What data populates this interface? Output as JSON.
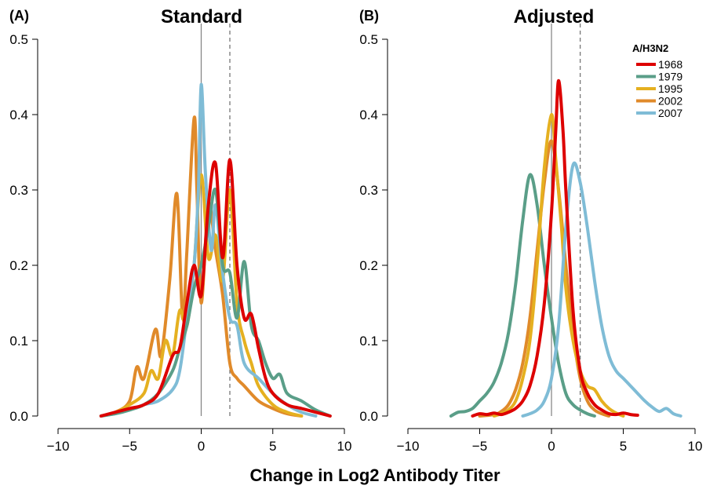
{
  "xlabel": "Change in Log2 Antibody Titer",
  "legend": {
    "title": "A/H3N2",
    "entries": [
      {
        "label": "1968",
        "color": "#dd0000"
      },
      {
        "label": "1979",
        "color": "#5a9e88"
      },
      {
        "label": "1995",
        "color": "#e5b020"
      },
      {
        "label": "2002",
        "color": "#e08a2a"
      },
      {
        "label": "2007",
        "color": "#7fbcd6"
      }
    ]
  },
  "chart_data": [
    {
      "type": "line",
      "panel_label": "(A)",
      "title": "Standard",
      "xlabel": "Change in Log2 Antibody Titer",
      "ylabel": "",
      "xlim": [
        -10,
        10
      ],
      "ylim": [
        0,
        0.5
      ],
      "xticks": [
        -10,
        -5,
        0,
        5,
        10
      ],
      "xtick_labels": [
        "−10",
        "−5",
        "0",
        "5",
        "10"
      ],
      "yticks": [
        0.0,
        0.1,
        0.2,
        0.3,
        0.4,
        0.5
      ],
      "ytick_labels": [
        "0.0",
        "0.1",
        "0.2",
        "0.3",
        "0.4",
        "0.5"
      ],
      "vlines": [
        {
          "x": 0,
          "style": "solid"
        },
        {
          "x": 2,
          "style": "dashed"
        }
      ],
      "series": [
        {
          "name": "2002",
          "color": "#e08a2a",
          "x": [
            -7,
            -6,
            -5,
            -4.5,
            -4,
            -3.2,
            -2.8,
            -2.2,
            -1.7,
            -1.3,
            -1,
            -0.5,
            -0.3,
            0,
            0.5,
            1,
            1.5,
            2,
            2.5,
            3,
            4,
            5,
            6,
            7
          ],
          "y": [
            0,
            0.005,
            0.02,
            0.065,
            0.05,
            0.115,
            0.08,
            0.18,
            0.295,
            0.13,
            0.22,
            0.395,
            0.3,
            0.15,
            0.28,
            0.22,
            0.16,
            0.07,
            0.05,
            0.04,
            0.02,
            0.01,
            0.003,
            0
          ]
        },
        {
          "name": "1995",
          "color": "#e5b020",
          "x": [
            -7,
            -6,
            -5,
            -4,
            -3.5,
            -3,
            -2.5,
            -2,
            -1.5,
            -1,
            -0.5,
            0,
            0.5,
            1,
            1.5,
            2,
            2.5,
            3,
            3.5,
            4,
            5,
            6,
            7
          ],
          "y": [
            0,
            0.005,
            0.015,
            0.03,
            0.06,
            0.05,
            0.1,
            0.08,
            0.14,
            0.12,
            0.2,
            0.32,
            0.21,
            0.24,
            0.18,
            0.3,
            0.15,
            0.1,
            0.07,
            0.04,
            0.015,
            0.005,
            0
          ]
        },
        {
          "name": "2007",
          "color": "#7fbcd6",
          "x": [
            -7,
            -6,
            -5,
            -4,
            -3,
            -2,
            -1.5,
            -1,
            -0.5,
            -0.2,
            0,
            0.3,
            0.7,
            1,
            1.5,
            2,
            2.5,
            3,
            4,
            5,
            6,
            7,
            8
          ],
          "y": [
            0,
            0.003,
            0.008,
            0.015,
            0.02,
            0.035,
            0.06,
            0.13,
            0.2,
            0.3,
            0.44,
            0.32,
            0.22,
            0.28,
            0.19,
            0.13,
            0.12,
            0.07,
            0.05,
            0.03,
            0.015,
            0.005,
            0
          ]
        },
        {
          "name": "1979",
          "color": "#5a9e88",
          "x": [
            -7,
            -6,
            -5,
            -4,
            -3,
            -2,
            -1.5,
            -1,
            -0.5,
            0,
            0.5,
            1,
            1.5,
            2,
            2.5,
            3,
            3.5,
            4,
            4.5,
            5,
            5.5,
            6,
            7,
            8,
            9
          ],
          "y": [
            0,
            0.003,
            0.008,
            0.015,
            0.03,
            0.06,
            0.09,
            0.12,
            0.17,
            0.2,
            0.25,
            0.3,
            0.2,
            0.19,
            0.13,
            0.205,
            0.12,
            0.1,
            0.07,
            0.05,
            0.055,
            0.03,
            0.02,
            0.008,
            0
          ]
        },
        {
          "name": "1968",
          "color": "#dd0000",
          "x": [
            -7,
            -6,
            -5,
            -4,
            -3,
            -2,
            -1.5,
            -1,
            -0.5,
            0,
            0.5,
            1,
            1.5,
            2,
            2.5,
            3,
            3.5,
            4,
            4.5,
            5,
            6,
            7,
            8,
            9
          ],
          "y": [
            0,
            0.005,
            0.01,
            0.015,
            0.03,
            0.08,
            0.09,
            0.15,
            0.2,
            0.16,
            0.28,
            0.335,
            0.21,
            0.34,
            0.2,
            0.13,
            0.135,
            0.09,
            0.05,
            0.03,
            0.015,
            0.01,
            0.005,
            0
          ]
        }
      ]
    },
    {
      "type": "line",
      "panel_label": "(B)",
      "title": "Adjusted",
      "xlabel": "Change in Log2 Antibody Titer",
      "ylabel": "",
      "xlim": [
        -10,
        10
      ],
      "ylim": [
        0,
        0.5
      ],
      "xticks": [
        -10,
        -5,
        0,
        5,
        10
      ],
      "xtick_labels": [
        "−10",
        "−5",
        "0",
        "5",
        "10"
      ],
      "yticks": [
        0.0,
        0.1,
        0.2,
        0.3,
        0.4,
        0.5
      ],
      "ytick_labels": [
        "0.0",
        "0.1",
        "0.2",
        "0.3",
        "0.4",
        "0.5"
      ],
      "vlines": [
        {
          "x": 0,
          "style": "solid"
        },
        {
          "x": 2,
          "style": "dashed"
        }
      ],
      "legend_position": "top-right",
      "series": [
        {
          "name": "1979",
          "color": "#5a9e88",
          "x": [
            -7,
            -6.5,
            -6,
            -5.5,
            -5,
            -4.5,
            -4,
            -3.5,
            -3,
            -2.5,
            -2,
            -1.5,
            -1,
            -0.5,
            0,
            0.5,
            1,
            1.5,
            2,
            2.5,
            3
          ],
          "y": [
            0,
            0.005,
            0.006,
            0.01,
            0.02,
            0.03,
            0.045,
            0.07,
            0.11,
            0.175,
            0.26,
            0.32,
            0.28,
            0.2,
            0.13,
            0.07,
            0.03,
            0.015,
            0.008,
            0.003,
            0
          ]
        },
        {
          "name": "2002",
          "color": "#e08a2a",
          "x": [
            -5,
            -4,
            -3.5,
            -3,
            -2.5,
            -2,
            -1.5,
            -1,
            -0.5,
            0,
            0.5,
            1,
            1.5,
            2,
            2.5,
            3,
            3.5,
            4
          ],
          "y": [
            0,
            0.002,
            0.006,
            0.015,
            0.035,
            0.07,
            0.13,
            0.22,
            0.31,
            0.365,
            0.3,
            0.2,
            0.11,
            0.05,
            0.02,
            0.008,
            0.003,
            0
          ]
        },
        {
          "name": "1995",
          "color": "#e5b020",
          "x": [
            -4,
            -3.5,
            -3,
            -2.5,
            -2,
            -1.5,
            -1,
            -0.5,
            0,
            0.3,
            0.7,
            1,
            1.5,
            2,
            2.5,
            3,
            3.5,
            4,
            4.5,
            5
          ],
          "y": [
            0,
            0.003,
            0.008,
            0.02,
            0.05,
            0.1,
            0.2,
            0.33,
            0.4,
            0.34,
            0.25,
            0.17,
            0.1,
            0.06,
            0.04,
            0.035,
            0.02,
            0.01,
            0.004,
            0
          ]
        },
        {
          "name": "2007",
          "color": "#7fbcd6",
          "x": [
            -2,
            -1.5,
            -1,
            -0.5,
            0,
            0.5,
            1,
            1.5,
            2,
            2.5,
            3,
            3.5,
            4,
            4.5,
            5,
            5.5,
            6,
            6.5,
            7,
            7.5,
            8,
            8.5,
            9
          ],
          "y": [
            0,
            0.003,
            0.008,
            0.02,
            0.05,
            0.12,
            0.25,
            0.333,
            0.31,
            0.25,
            0.18,
            0.12,
            0.08,
            0.06,
            0.05,
            0.04,
            0.03,
            0.02,
            0.012,
            0.006,
            0.01,
            0.003,
            0
          ]
        },
        {
          "name": "1968",
          "color": "#dd0000",
          "x": [
            -5.5,
            -5,
            -4.5,
            -4,
            -3.5,
            -3,
            -2.5,
            -2,
            -1.5,
            -1,
            -0.5,
            0,
            0.3,
            0.5,
            0.8,
            1,
            1.5,
            2,
            2.5,
            3,
            3.5,
            4,
            4.5,
            5,
            5.5,
            6
          ],
          "y": [
            0,
            0.003,
            0.002,
            0.004,
            0.002,
            0.005,
            0.01,
            0.02,
            0.04,
            0.08,
            0.15,
            0.27,
            0.38,
            0.445,
            0.38,
            0.3,
            0.14,
            0.06,
            0.03,
            0.015,
            0.008,
            0.003,
            0.002,
            0.004,
            0.002,
            0.001
          ]
        }
      ]
    }
  ]
}
